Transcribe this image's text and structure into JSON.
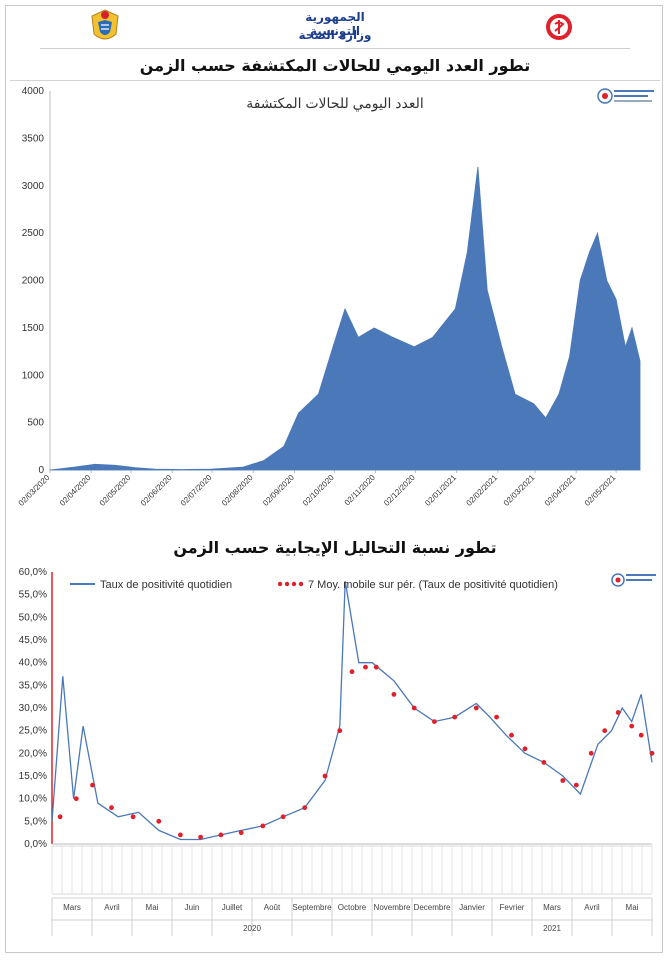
{
  "header": {
    "ministry_line1": "الجمهورية التونسية",
    "ministry_line2": "وزارة الصحة",
    "left_emblem": "tunisia-coat-of-arms-icon",
    "right_emblem": "ministry-of-health-icon"
  },
  "chart_data": [
    {
      "type": "area",
      "title": "تطور العدد اليومي للحالات المكتشفة حسب الزمن",
      "annotation": "العدد اليومي للحالات المكتشفة",
      "color": "#4a78b8",
      "ylim": [
        0,
        4000
      ],
      "yticks": [
        0,
        500,
        1000,
        1500,
        2000,
        2500,
        3000,
        3500,
        4000
      ],
      "xlim": [
        "2020-03-02",
        "2021-05-20"
      ],
      "xtick_labels": [
        "02/03/2020",
        "02/04/2020",
        "02/05/2020",
        "02/06/2020",
        "02/07/2020",
        "02/08/2020",
        "02/09/2020",
        "02/10/2020",
        "02/11/2020",
        "02/12/2020",
        "02/01/2021",
        "02/02/2021",
        "02/03/2021",
        "02/04/2021",
        "02/05/2021"
      ],
      "grid": false,
      "series": [
        {
          "x": [
            "2020-03-02",
            "2020-03-20",
            "2020-04-05",
            "2020-04-20",
            "2020-05-05",
            "2020-05-20",
            "2020-06-10",
            "2020-07-01",
            "2020-07-25",
            "2020-08-10",
            "2020-08-25",
            "2020-09-05",
            "2020-09-20",
            "2020-10-01",
            "2020-10-10",
            "2020-10-20",
            "2020-11-01",
            "2020-11-15",
            "2020-12-01",
            "2020-12-15",
            "2021-01-01",
            "2021-01-10",
            "2021-01-18",
            "2021-01-25",
            "2021-02-05",
            "2021-02-15",
            "2021-03-01",
            "2021-03-10",
            "2021-03-20",
            "2021-03-28",
            "2021-04-05",
            "2021-04-12",
            "2021-04-18",
            "2021-04-25",
            "2021-05-02",
            "2021-05-09",
            "2021-05-14",
            "2021-05-20"
          ],
          "values": [
            0,
            30,
            60,
            50,
            25,
            10,
            5,
            10,
            30,
            100,
            250,
            600,
            800,
            1300,
            1700,
            1400,
            1500,
            1400,
            1300,
            1400,
            1700,
            2300,
            3200,
            1900,
            1300,
            800,
            700,
            550,
            800,
            1200,
            2000,
            2300,
            2500,
            2000,
            1800,
            1300,
            1500,
            1150
          ]
        }
      ]
    },
    {
      "type": "line",
      "title": "تطور نسبة التحاليل الإيجابية حسب الزمن",
      "ylim": [
        0,
        60
      ],
      "ytick_labels": [
        "0,0%",
        "5,0%",
        "10,0%",
        "15,0%",
        "20,0%",
        "25,0%",
        "30,0%",
        "35,0%",
        "40,0%",
        "45,0%",
        "50,0%",
        "55,0%",
        "60,0%"
      ],
      "legend_position": "top",
      "grid": false,
      "month_labels": [
        "Mars",
        "Avril",
        "Mai",
        "Juin",
        "Juillet",
        "Août",
        "Septembre",
        "Octobre",
        "Novembre",
        "Decembre",
        "Janvier",
        "Fevrier",
        "Mars",
        "Avril",
        "Mai"
      ],
      "year_labels": [
        "2020",
        "2021"
      ],
      "series": [
        {
          "name": "Taux de positivité quotidien",
          "color": "#4a78b8",
          "style": "line",
          "x": [
            "2020-03-02",
            "2020-03-10",
            "2020-03-18",
            "2020-03-25",
            "2020-04-05",
            "2020-04-20",
            "2020-05-05",
            "2020-05-20",
            "2020-06-05",
            "2020-06-20",
            "2020-07-05",
            "2020-07-20",
            "2020-08-05",
            "2020-08-20",
            "2020-09-05",
            "2020-09-20",
            "2020-10-01",
            "2020-10-05",
            "2020-10-15",
            "2020-10-25",
            "2020-11-10",
            "2020-11-25",
            "2020-12-10",
            "2020-12-25",
            "2021-01-10",
            "2021-01-20",
            "2021-02-01",
            "2021-02-15",
            "2021-03-01",
            "2021-03-15",
            "2021-03-28",
            "2021-04-10",
            "2021-04-20",
            "2021-04-28",
            "2021-05-05",
            "2021-05-12",
            "2021-05-20"
          ],
          "values": [
            5,
            37,
            10,
            26,
            9,
            6,
            7,
            3,
            1,
            1,
            2,
            3,
            4,
            6,
            8,
            14,
            26,
            58,
            40,
            40,
            36,
            30,
            27,
            28,
            31,
            28,
            24,
            20,
            18,
            15,
            11,
            22,
            25,
            30,
            27,
            33,
            18
          ]
        },
        {
          "name": "7 Moy. mobile sur pér. (Taux de positivité quotidien)",
          "color": "#e0202a",
          "style": "dotted",
          "x": [
            "2020-03-08",
            "2020-03-20",
            "2020-04-01",
            "2020-04-15",
            "2020-05-01",
            "2020-05-20",
            "2020-06-05",
            "2020-06-20",
            "2020-07-05",
            "2020-07-20",
            "2020-08-05",
            "2020-08-20",
            "2020-09-05",
            "2020-09-20",
            "2020-10-01",
            "2020-10-10",
            "2020-10-20",
            "2020-10-28",
            "2020-11-10",
            "2020-11-25",
            "2020-12-10",
            "2020-12-25",
            "2021-01-10",
            "2021-01-25",
            "2021-02-05",
            "2021-02-15",
            "2021-03-01",
            "2021-03-15",
            "2021-03-25",
            "2021-04-05",
            "2021-04-15",
            "2021-04-25",
            "2021-05-05",
            "2021-05-12",
            "2021-05-20"
          ],
          "values": [
            6,
            10,
            13,
            8,
            6,
            5,
            2,
            1.5,
            2,
            2.5,
            4,
            6,
            8,
            15,
            25,
            38,
            39,
            39,
            33,
            30,
            27,
            28,
            30,
            28,
            24,
            21,
            18,
            14,
            13,
            20,
            25,
            29,
            26,
            24,
            20
          ]
        }
      ]
    }
  ]
}
